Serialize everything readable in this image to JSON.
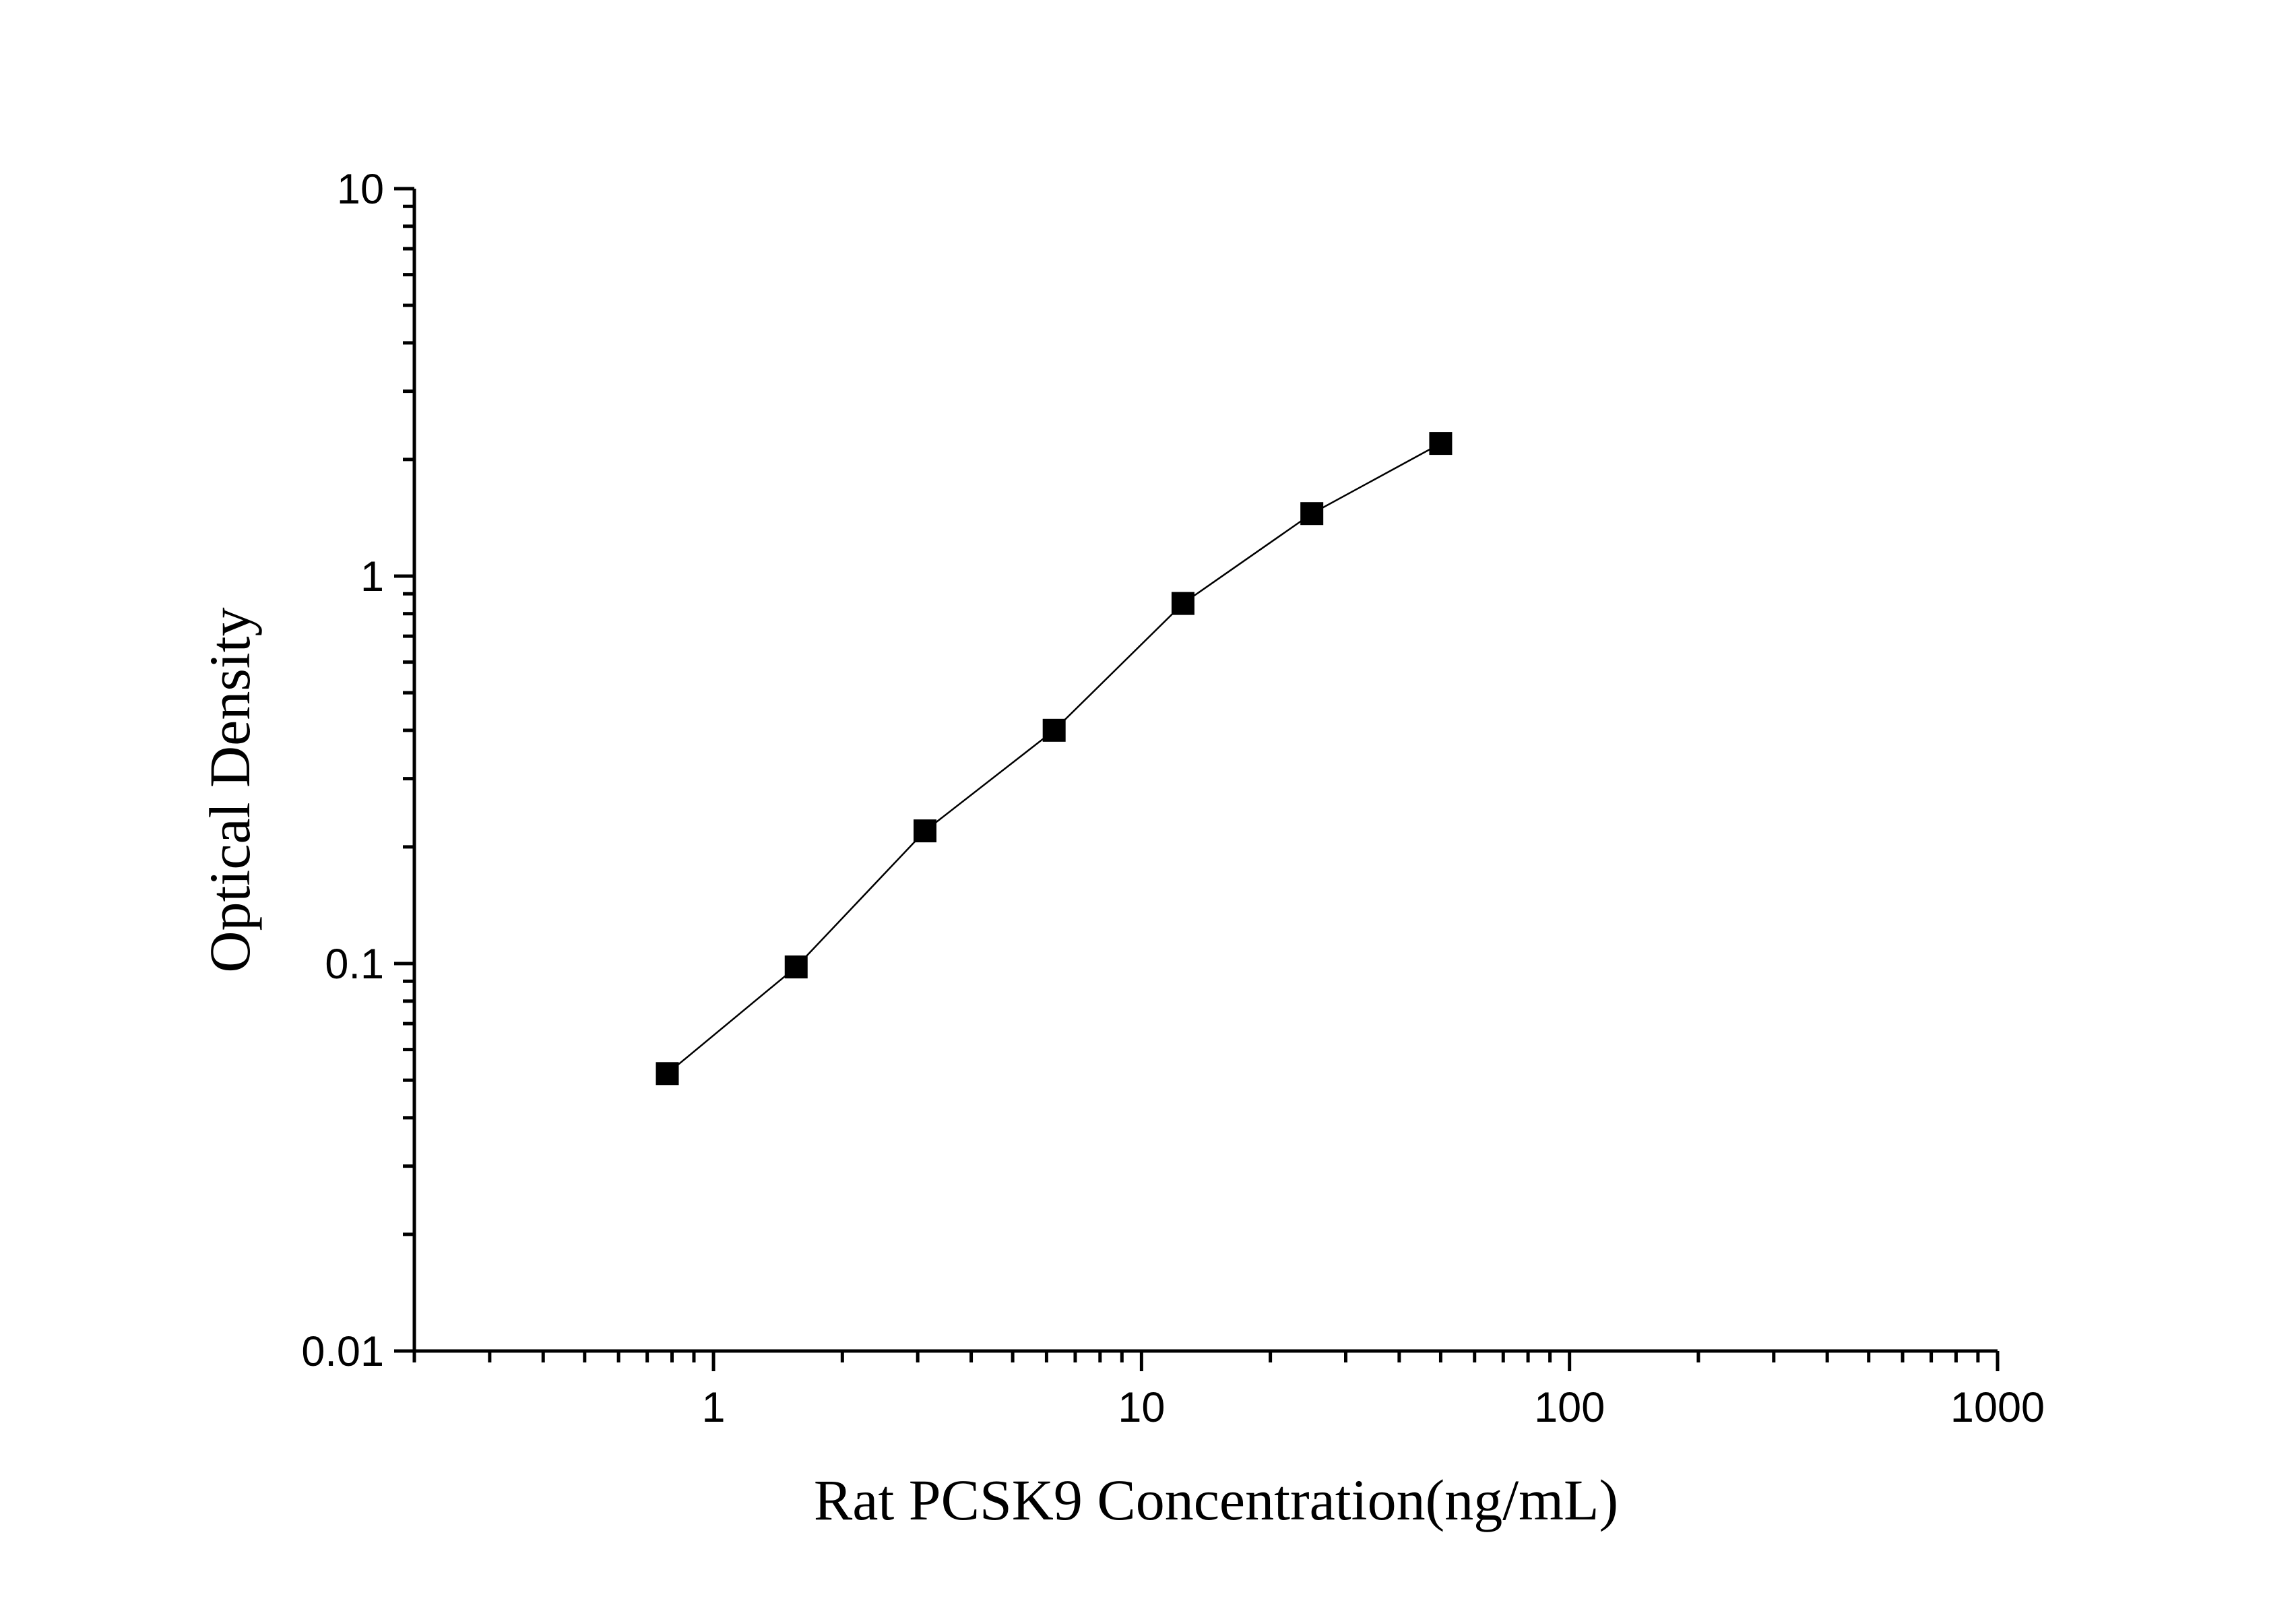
{
  "chart_data": {
    "type": "scatter",
    "xscale": "log",
    "yscale": "log",
    "xlim": [
      0.2,
      1000
    ],
    "ylim": [
      0.01,
      10
    ],
    "xlabel": "Rat PCSK9 Concentration(ng/mL)",
    "ylabel": "Optical Density",
    "x_ticks": [
      "1",
      "10",
      "100",
      "1000"
    ],
    "y_ticks": [
      "0.01",
      "0.1",
      "1",
      "10"
    ],
    "grid": false,
    "legend": "none",
    "series": [
      {
        "marker": "square",
        "color": "#000000",
        "line": "connected",
        "x": [
          0.78,
          1.56,
          3.12,
          6.25,
          12.5,
          25,
          50
        ],
        "y": [
          0.052,
          0.098,
          0.22,
          0.4,
          0.85,
          1.45,
          2.2
        ]
      }
    ]
  }
}
